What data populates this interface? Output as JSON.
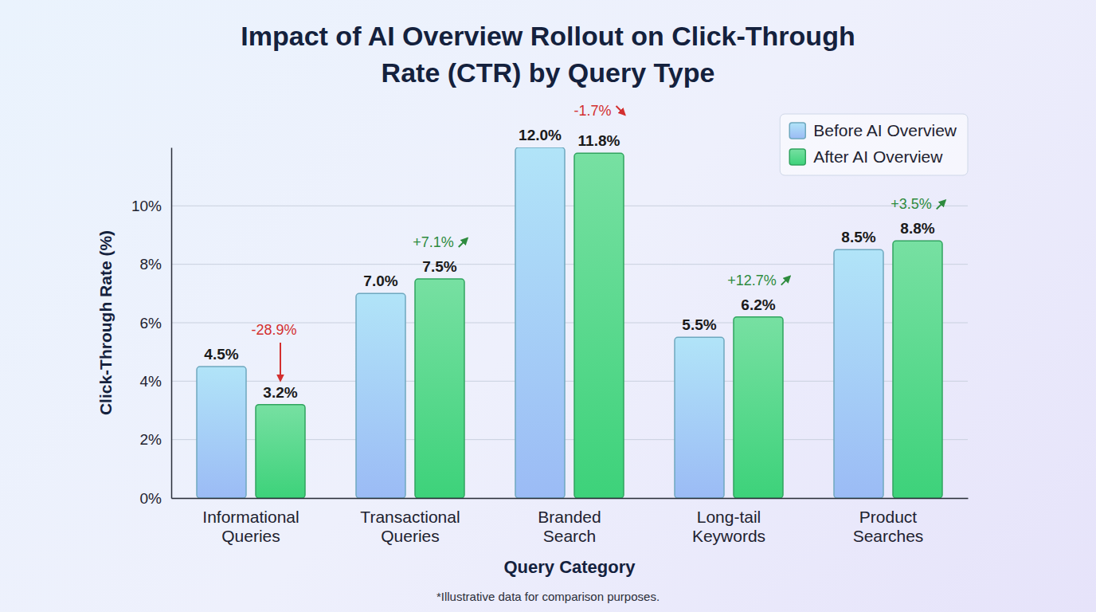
{
  "chart_data": {
    "type": "bar",
    "title": "Impact of AI Overview Rollout on Click-Through Rate (CTR) by Query Type",
    "x_label": "Query Category",
    "y_label": "Click-Through Rate (%)",
    "categories": [
      "Informational Queries",
      "Transactional Queries",
      "Branded Search",
      "Long-tail Keywords",
      "Product Searches"
    ],
    "series": [
      {
        "name": "Before AI Overview",
        "color": "#8fd8f5",
        "values": [
          4.5,
          7.0,
          12.0,
          5.5,
          8.5
        ],
        "value_labels": [
          "4.5%",
          "7.0%",
          "12.0%",
          "5.5%",
          "8.5%"
        ]
      },
      {
        "name": "After AI Overview",
        "color": "#3dd27a",
        "values": [
          3.2,
          7.5,
          11.8,
          6.2,
          8.8
        ],
        "value_labels": [
          "3.2%",
          "7.5%",
          "11.8%",
          "6.2%",
          "8.8%"
        ]
      }
    ],
    "annotations": [
      "-28.9%",
      "+7.1%",
      "-1.7%",
      "+12.7%",
      "+3.5%"
    ],
    "footnote": "*Illustrative data for comparison purposes.",
    "ylim": [
      0,
      12
    ],
    "yticks": [
      {
        "value": 0,
        "label": "0%"
      },
      {
        "value": 2,
        "label": "2%"
      },
      {
        "value": 4,
        "label": "4%"
      },
      {
        "value": 6,
        "label": "6%"
      },
      {
        "value": 8,
        "label": "8%"
      },
      {
        "value": 10,
        "label": "10%"
      }
    ],
    "grid": true,
    "legend": "upper right",
    "data_labels": true
  }
}
